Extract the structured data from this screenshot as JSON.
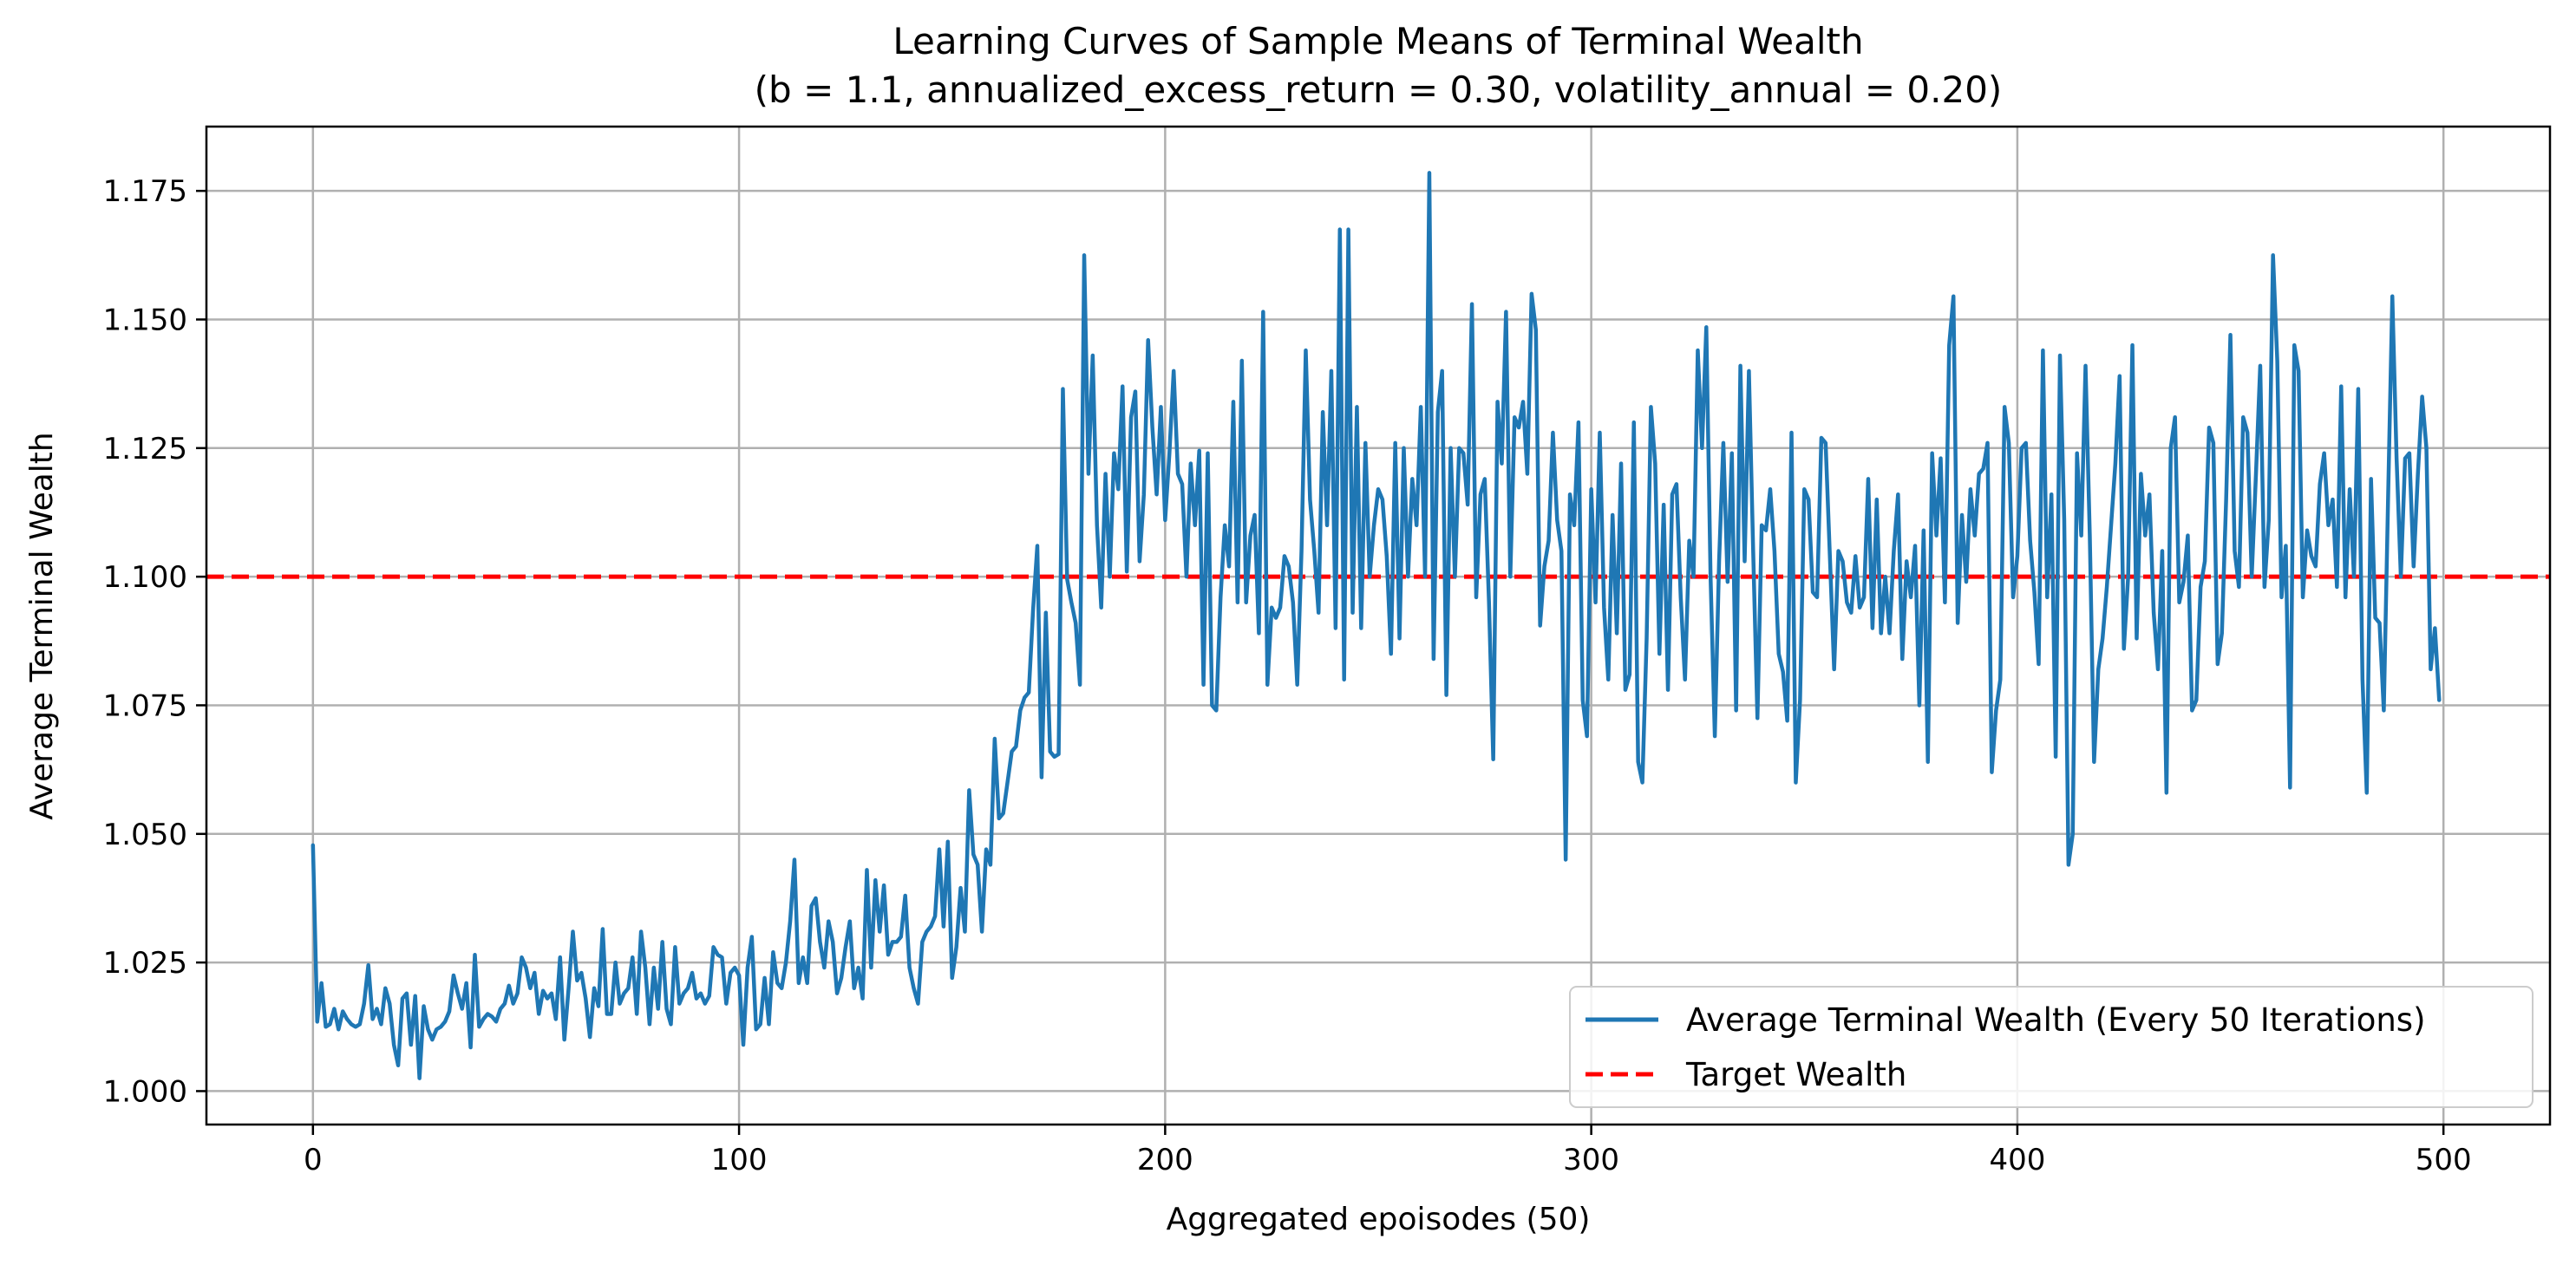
{
  "chart_data": {
    "type": "line",
    "title": "Learning Curves of Sample Means of Terminal Wealth",
    "subtitle": "(b = 1.1, annualized_excess_return = 0.30, volatility_annual = 0.20)",
    "xlabel": "Aggregated epoisodes (50)",
    "ylabel": "Average Terminal Wealth",
    "xlim": [
      -25,
      525
    ],
    "ylim": [
      0.9935,
      1.1875
    ],
    "x_ticks": [
      0,
      100,
      200,
      300,
      400,
      500
    ],
    "x_tick_labels": [
      "0",
      "100",
      "200",
      "300",
      "400",
      "500"
    ],
    "y_ticks": [
      1.0,
      1.025,
      1.05,
      1.075,
      1.1,
      1.125,
      1.15,
      1.175
    ],
    "y_tick_labels": [
      "1.000",
      "1.025",
      "1.050",
      "1.075",
      "1.100",
      "1.125",
      "1.150",
      "1.175"
    ],
    "grid": true,
    "legend_position": "lower right",
    "series": [
      {
        "name": "Average Terminal Wealth (Every 50 Iterations)",
        "color": "#1f77b4",
        "style": "solid",
        "x_start": 0,
        "x_step": 1,
        "values": [
          1.0478,
          1.0135,
          1.021,
          1.0125,
          1.013,
          1.016,
          1.012,
          1.0155,
          1.014,
          1.013,
          1.0125,
          1.013,
          1.017,
          1.0245,
          1.014,
          1.016,
          1.013,
          1.02,
          1.017,
          1.009,
          1.005,
          1.018,
          1.019,
          1.009,
          1.0185,
          1.0025,
          1.0165,
          1.012,
          1.01,
          1.012,
          1.0125,
          1.0135,
          1.0155,
          1.0225,
          1.019,
          1.016,
          1.021,
          1.0085,
          1.0265,
          1.0125,
          1.014,
          1.015,
          1.0145,
          1.0135,
          1.016,
          1.017,
          1.0205,
          1.017,
          1.019,
          1.026,
          1.024,
          1.02,
          1.023,
          1.015,
          1.0195,
          1.018,
          1.019,
          1.014,
          1.026,
          1.01,
          1.02,
          1.031,
          1.0215,
          1.023,
          1.018,
          1.0105,
          1.02,
          1.0165,
          1.0315,
          1.015,
          1.015,
          1.025,
          1.017,
          1.019,
          1.02,
          1.026,
          1.015,
          1.031,
          1.024,
          1.013,
          1.024,
          1.016,
          1.029,
          1.016,
          1.013,
          1.028,
          1.017,
          1.019,
          1.02,
          1.023,
          1.018,
          1.019,
          1.017,
          1.0185,
          1.028,
          1.0265,
          1.026,
          1.017,
          1.023,
          1.024,
          1.0225,
          1.009,
          1.024,
          1.03,
          1.012,
          1.013,
          1.022,
          1.013,
          1.027,
          1.021,
          1.02,
          1.025,
          1.033,
          1.045,
          1.021,
          1.026,
          1.021,
          1.036,
          1.0375,
          1.029,
          1.024,
          1.033,
          1.029,
          1.019,
          1.022,
          1.028,
          1.033,
          1.02,
          1.024,
          1.018,
          1.043,
          1.024,
          1.041,
          1.031,
          1.04,
          1.0265,
          1.029,
          1.029,
          1.03,
          1.038,
          1.024,
          1.02,
          1.017,
          1.029,
          1.031,
          1.032,
          1.034,
          1.047,
          1.032,
          1.0485,
          1.022,
          1.028,
          1.0395,
          1.031,
          1.0585,
          1.046,
          1.044,
          1.031,
          1.047,
          1.044,
          1.0685,
          1.053,
          1.054,
          1.06,
          1.066,
          1.067,
          1.074,
          1.0765,
          1.0775,
          1.0935,
          1.106,
          1.061,
          1.093,
          1.066,
          1.065,
          1.0655,
          1.1365,
          1.0995,
          1.095,
          1.091,
          1.079,
          1.1625,
          1.12,
          1.143,
          1.11,
          1.094,
          1.12,
          1.1,
          1.124,
          1.117,
          1.137,
          1.101,
          1.131,
          1.136,
          1.103,
          1.116,
          1.146,
          1.129,
          1.116,
          1.133,
          1.111,
          1.124,
          1.14,
          1.12,
          1.118,
          1.1,
          1.122,
          1.11,
          1.1245,
          1.079,
          1.124,
          1.075,
          1.074,
          1.096,
          1.11,
          1.102,
          1.134,
          1.095,
          1.142,
          1.095,
          1.108,
          1.112,
          1.089,
          1.1515,
          1.079,
          1.094,
          1.092,
          1.094,
          1.104,
          1.102,
          1.095,
          1.079,
          1.105,
          1.144,
          1.115,
          1.105,
          1.093,
          1.132,
          1.11,
          1.14,
          1.09,
          1.1675,
          1.08,
          1.1675,
          1.093,
          1.133,
          1.09,
          1.126,
          1.1,
          1.11,
          1.117,
          1.115,
          1.104,
          1.085,
          1.126,
          1.088,
          1.125,
          1.1,
          1.119,
          1.11,
          1.133,
          1.1,
          1.1785,
          1.084,
          1.132,
          1.14,
          1.077,
          1.125,
          1.1,
          1.125,
          1.124,
          1.114,
          1.153,
          1.096,
          1.116,
          1.119,
          1.095,
          1.0645,
          1.134,
          1.122,
          1.1515,
          1.1,
          1.131,
          1.129,
          1.134,
          1.12,
          1.155,
          1.148,
          1.0905,
          1.102,
          1.107,
          1.128,
          1.111,
          1.105,
          1.045,
          1.116,
          1.11,
          1.13,
          1.076,
          1.069,
          1.117,
          1.095,
          1.128,
          1.094,
          1.08,
          1.112,
          1.089,
          1.122,
          1.078,
          1.081,
          1.13,
          1.064,
          1.06,
          1.088,
          1.133,
          1.122,
          1.085,
          1.114,
          1.078,
          1.116,
          1.118,
          1.096,
          1.08,
          1.107,
          1.1,
          1.144,
          1.125,
          1.1485,
          1.1,
          1.069,
          1.103,
          1.126,
          1.099,
          1.124,
          1.074,
          1.141,
          1.103,
          1.14,
          1.105,
          1.0725,
          1.11,
          1.109,
          1.117,
          1.105,
          1.085,
          1.0815,
          1.072,
          1.128,
          1.06,
          1.076,
          1.117,
          1.115,
          1.097,
          1.096,
          1.127,
          1.126,
          1.104,
          1.082,
          1.105,
          1.103,
          1.095,
          1.093,
          1.104,
          1.094,
          1.096,
          1.119,
          1.09,
          1.115,
          1.089,
          1.1,
          1.089,
          1.105,
          1.116,
          1.084,
          1.103,
          1.096,
          1.106,
          1.075,
          1.109,
          1.064,
          1.124,
          1.108,
          1.123,
          1.095,
          1.145,
          1.1545,
          1.091,
          1.112,
          1.099,
          1.117,
          1.108,
          1.12,
          1.121,
          1.126,
          1.062,
          1.074,
          1.08,
          1.133,
          1.126,
          1.096,
          1.104,
          1.125,
          1.126,
          1.107,
          1.097,
          1.083,
          1.144,
          1.096,
          1.116,
          1.065,
          1.143,
          1.111,
          1.044,
          1.05,
          1.124,
          1.108,
          1.141,
          1.108,
          1.064,
          1.082,
          1.088,
          1.098,
          1.11,
          1.122,
          1.139,
          1.086,
          1.1,
          1.145,
          1.088,
          1.12,
          1.108,
          1.116,
          1.093,
          1.082,
          1.105,
          1.058,
          1.125,
          1.131,
          1.095,
          1.099,
          1.108,
          1.074,
          1.076,
          1.098,
          1.103,
          1.129,
          1.126,
          1.083,
          1.089,
          1.115,
          1.147,
          1.105,
          1.098,
          1.131,
          1.128,
          1.1,
          1.12,
          1.141,
          1.098,
          1.111,
          1.1625,
          1.142,
          1.096,
          1.106,
          1.059,
          1.145,
          1.14,
          1.096,
          1.109,
          1.104,
          1.102,
          1.118,
          1.124,
          1.11,
          1.115,
          1.098,
          1.137,
          1.096,
          1.117,
          1.1,
          1.1365,
          1.08,
          1.058,
          1.119,
          1.092,
          1.091,
          1.074,
          1.115,
          1.1545,
          1.123,
          1.1,
          1.123,
          1.124,
          1.102,
          1.12,
          1.135,
          1.125,
          1.082,
          1.09,
          1.076
        ]
      },
      {
        "name": "Target Wealth",
        "color": "#ff0000",
        "style": "dashed",
        "value": 1.1
      }
    ]
  }
}
